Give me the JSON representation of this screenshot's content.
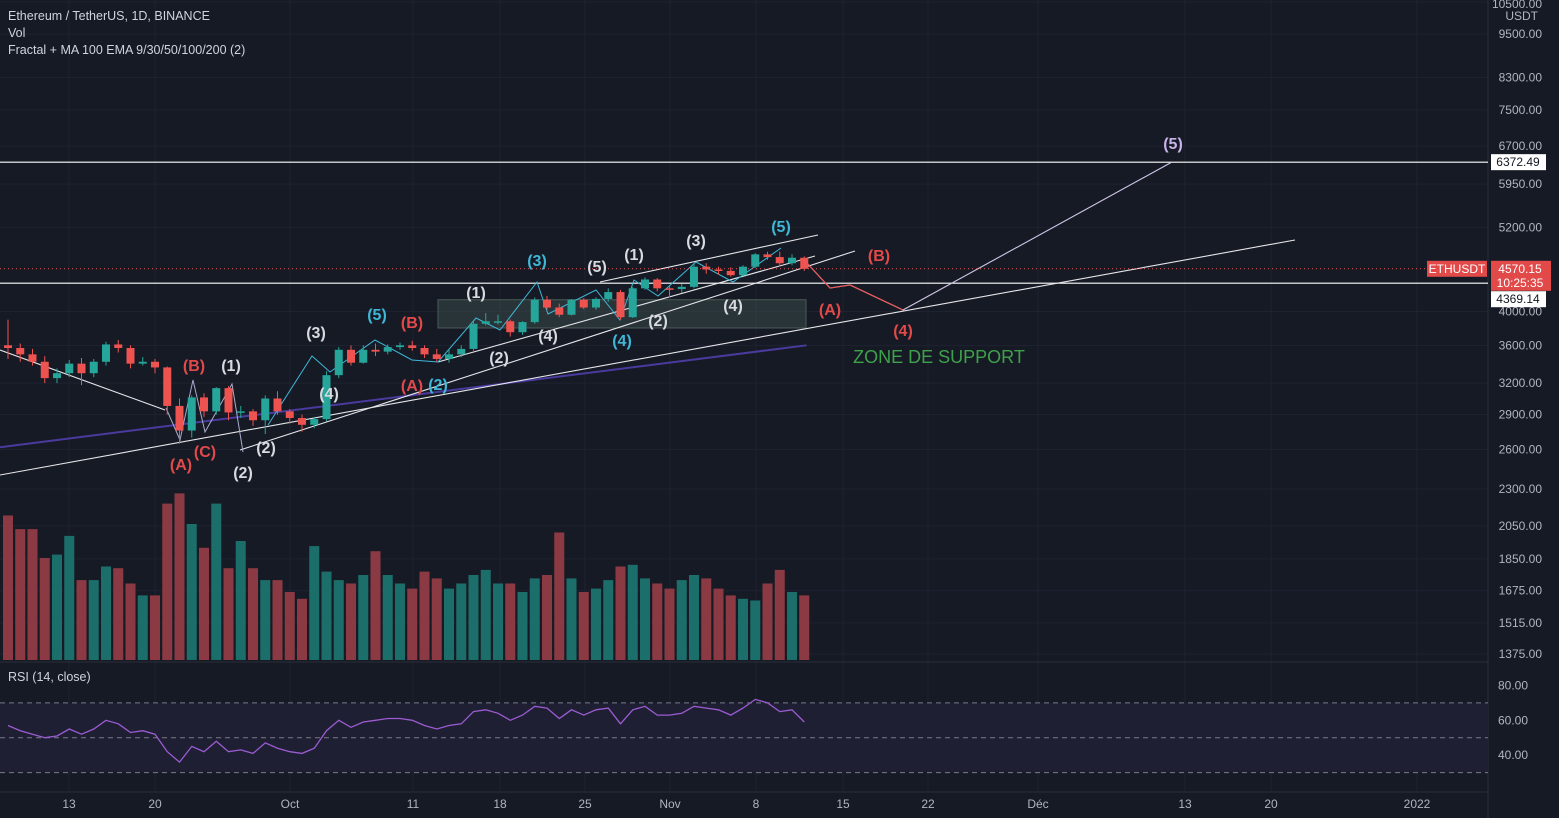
{
  "header": {
    "symbol_line": "Ethereum / TetherUS, 1D, BINANCE",
    "vol_label": "Vol",
    "indicator_label": "Fractal + MA 100 EMA 9/30/50/100/200 (2)",
    "rsi_label": "RSI (14, close)"
  },
  "colors": {
    "background": "#161a25",
    "up": "#26a69a",
    "down": "#ef5350",
    "vol_up": "#1c6e6a",
    "vol_down": "#8b3a44",
    "ema": "#4a3a9e",
    "rsi": "#9c5bd2",
    "cyan_wave": "#3fb8d8",
    "red_wave": "#e24a4a",
    "white_wave": "#d8dae0",
    "violet_wave": "#c8b4e8",
    "support": "#3ea24a"
  },
  "price_axis": {
    "currency": "USDT",
    "ticks": [
      "10500.00",
      "9500.00",
      "8300.00",
      "7500.00",
      "6700.00",
      "5950.00",
      "5200.00",
      "4000.00",
      "3600.00",
      "3200.00",
      "2900.00",
      "2600.00",
      "2300.00",
      "2050.00",
      "1850.00",
      "1675.00",
      "1515.00",
      "1375.00"
    ],
    "symbol_tag": "ETHUSDT",
    "last_price": "4570.15",
    "countdown": "10:25:35",
    "level_high": "6372.49",
    "level_low": "4369.14"
  },
  "rsi_axis": {
    "ticks": [
      "80.00",
      "60.00",
      "40.00"
    ]
  },
  "time_axis": {
    "ticks": [
      "13",
      "20",
      "Oct",
      "11",
      "18",
      "25",
      "Nov",
      "8",
      "15",
      "22",
      "Déc",
      "13",
      "20",
      "2022"
    ]
  },
  "annotations": {
    "support_zone": "ZONE DE SUPPORT"
  },
  "waves": [
    {
      "text": "(B)",
      "color": "red"
    },
    {
      "text": "(1)",
      "color": "white"
    },
    {
      "text": "(A)",
      "color": "red"
    },
    {
      "text": "(C)",
      "color": "red"
    },
    {
      "text": "(2)",
      "color": "white"
    },
    {
      "text": "(2)",
      "color": "white"
    },
    {
      "text": "(3)",
      "color": "white"
    },
    {
      "text": "(4)",
      "color": "white"
    },
    {
      "text": "(5)",
      "color": "cyan"
    },
    {
      "text": "(B)",
      "color": "red"
    },
    {
      "text": "(A)",
      "color": "red"
    },
    {
      "text": "(2)",
      "color": "cyan"
    },
    {
      "text": "(1)",
      "color": "white"
    },
    {
      "text": "(2)",
      "color": "white"
    },
    {
      "text": "(3)",
      "color": "cyan"
    },
    {
      "text": "(4)",
      "color": "white"
    },
    {
      "text": "(5)",
      "color": "white"
    },
    {
      "text": "(4)",
      "color": "cyan"
    },
    {
      "text": "(1)",
      "color": "white"
    },
    {
      "text": "(2)",
      "color": "white"
    },
    {
      "text": "(3)",
      "color": "white"
    },
    {
      "text": "(4)",
      "color": "white"
    },
    {
      "text": "(5)",
      "color": "cyan"
    },
    {
      "text": "(B)",
      "color": "red"
    },
    {
      "text": "(A)",
      "color": "red"
    },
    {
      "text": "(4)",
      "color": "red"
    },
    {
      "text": "(5)",
      "color": "violet"
    }
  ],
  "chart_data": {
    "type": "candlestick",
    "title": "Ethereum / TetherUS, 1D, BINANCE",
    "price_scale": "log",
    "ylim": [
      1375,
      10500
    ],
    "x_dates": [
      "Sep 7",
      "Sep 8",
      "Sep 9",
      "Sep 10",
      "Sep 11",
      "Sep 12",
      "Sep 13",
      "Sep 14",
      "Sep 15",
      "Sep 16",
      "Sep 17",
      "Sep 18",
      "Sep 19",
      "Sep 20",
      "Sep 21",
      "Sep 22",
      "Sep 23",
      "Sep 24",
      "Sep 25",
      "Sep 26",
      "Sep 27",
      "Sep 28",
      "Sep 29",
      "Sep 30",
      "Oct 1",
      "Oct 2",
      "Oct 3",
      "Oct 4",
      "Oct 5",
      "Oct 6",
      "Oct 7",
      "Oct 8",
      "Oct 9",
      "Oct 10",
      "Oct 11",
      "Oct 12",
      "Oct 13",
      "Oct 14",
      "Oct 15",
      "Oct 16",
      "Oct 17",
      "Oct 18",
      "Oct 19",
      "Oct 20",
      "Oct 21",
      "Oct 22",
      "Oct 23",
      "Oct 24",
      "Oct 25",
      "Oct 26",
      "Oct 27",
      "Oct 28",
      "Oct 29",
      "Oct 30",
      "Oct 31",
      "Nov 1",
      "Nov 2",
      "Nov 3",
      "Nov 4",
      "Nov 5",
      "Nov 6",
      "Nov 7",
      "Nov 8",
      "Nov 9",
      "Nov 10",
      "Nov 11"
    ],
    "candles": [
      [
        3600,
        3570,
        3900,
        3450
      ],
      [
        3570,
        3500,
        3620,
        3420
      ],
      [
        3500,
        3420,
        3560,
        3380
      ],
      [
        3420,
        3250,
        3480,
        3200
      ],
      [
        3250,
        3300,
        3350,
        3200
      ],
      [
        3300,
        3400,
        3440,
        3260
      ],
      [
        3400,
        3300,
        3460,
        3180
      ],
      [
        3300,
        3420,
        3450,
        3260
      ],
      [
        3420,
        3610,
        3640,
        3380
      ],
      [
        3610,
        3570,
        3660,
        3520
      ],
      [
        3570,
        3400,
        3600,
        3350
      ],
      [
        3400,
        3420,
        3470,
        3380
      ],
      [
        3420,
        3360,
        3450,
        3300
      ],
      [
        3360,
        2980,
        3370,
        2900
      ],
      [
        2980,
        2760,
        3050,
        2650
      ],
      [
        2760,
        3060,
        3080,
        2700
      ],
      [
        3060,
        2930,
        3100,
        2880
      ],
      [
        2930,
        3150,
        3160,
        2900
      ],
      [
        3150,
        2920,
        3170,
        2850
      ],
      [
        2920,
        2930,
        2980,
        2870
      ],
      [
        2930,
        2850,
        2950,
        2800
      ],
      [
        2850,
        3050,
        3080,
        2730
      ],
      [
        3050,
        2930,
        3120,
        2900
      ],
      [
        2930,
        2870,
        2950,
        2820
      ],
      [
        2870,
        2810,
        2900,
        2750
      ],
      [
        2810,
        2860,
        2880,
        2780
      ],
      [
        2860,
        3280,
        3320,
        2840
      ],
      [
        3280,
        3550,
        3580,
        3250
      ],
      [
        3550,
        3410,
        3600,
        3380
      ],
      [
        3410,
        3550,
        3600,
        3400
      ],
      [
        3550,
        3530,
        3620,
        3480
      ],
      [
        3530,
        3580,
        3610,
        3500
      ],
      [
        3580,
        3600,
        3630,
        3550
      ],
      [
        3600,
        3570,
        3650,
        3540
      ],
      [
        3570,
        3500,
        3600,
        3460
      ],
      [
        3500,
        3450,
        3560,
        3420
      ],
      [
        3450,
        3500,
        3560,
        3410
      ],
      [
        3500,
        3560,
        3600,
        3470
      ],
      [
        3560,
        3850,
        3880,
        3540
      ],
      [
        3850,
        3880,
        3980,
        3830
      ],
      [
        3880,
        3880,
        3960,
        3840
      ],
      [
        3880,
        3750,
        3900,
        3700
      ],
      [
        3750,
        3870,
        3880,
        3720
      ],
      [
        3870,
        4150,
        4180,
        3850
      ],
      [
        4150,
        4050,
        4200,
        4020
      ],
      [
        4050,
        3960,
        4100,
        3930
      ],
      [
        3960,
        4150,
        4160,
        3950
      ],
      [
        4150,
        4050,
        4170,
        4030
      ],
      [
        4050,
        4160,
        4180,
        4020
      ],
      [
        4160,
        4250,
        4300,
        4120
      ],
      [
        4250,
        3930,
        4280,
        3900
      ],
      [
        3930,
        4300,
        4320,
        3920
      ],
      [
        4300,
        4420,
        4450,
        4280
      ],
      [
        4420,
        4300,
        4440,
        4260
      ],
      [
        4300,
        4290,
        4330,
        4180
      ],
      [
        4290,
        4320,
        4360,
        4240
      ],
      [
        4320,
        4600,
        4650,
        4300
      ],
      [
        4600,
        4560,
        4650,
        4500
      ],
      [
        4560,
        4540,
        4600,
        4490
      ],
      [
        4540,
        4480,
        4590,
        4460
      ],
      [
        4480,
        4600,
        4620,
        4470
      ],
      [
        4600,
        4780,
        4800,
        4580
      ],
      [
        4780,
        4740,
        4820,
        4700
      ],
      [
        4740,
        4650,
        4820,
        4600
      ],
      [
        4650,
        4730,
        4780,
        4620
      ],
      [
        4730,
        4570,
        4750,
        4540
      ]
    ],
    "volume_relative": [
      0.85,
      0.77,
      0.77,
      0.6,
      0.62,
      0.73,
      0.47,
      0.47,
      0.55,
      0.54,
      0.45,
      0.38,
      0.38,
      0.92,
      0.98,
      0.8,
      0.66,
      0.92,
      0.54,
      0.7,
      0.54,
      0.47,
      0.47,
      0.4,
      0.36,
      0.67,
      0.52,
      0.47,
      0.45,
      0.5,
      0.64,
      0.5,
      0.45,
      0.42,
      0.52,
      0.48,
      0.42,
      0.45,
      0.5,
      0.53,
      0.45,
      0.45,
      0.4,
      0.48,
      0.5,
      0.75,
      0.48,
      0.4,
      0.42,
      0.47,
      0.55,
      0.56,
      0.48,
      0.45,
      0.42,
      0.47,
      0.5,
      0.48,
      0.42,
      0.38,
      0.36,
      0.35,
      0.45,
      0.53,
      0.4,
      0.38
    ],
    "rsi": [
      57,
      54,
      52,
      50,
      51,
      55,
      52,
      55,
      60,
      58,
      53,
      54,
      52,
      42,
      36,
      45,
      42,
      48,
      42,
      43,
      41,
      47,
      44,
      42,
      41,
      44,
      54,
      60,
      56,
      59,
      60,
      61,
      61,
      60,
      57,
      55,
      57,
      58,
      65,
      66,
      64,
      60,
      63,
      68,
      67,
      61,
      66,
      63,
      66,
      67,
      58,
      66,
      68,
      63,
      63,
      64,
      68,
      67,
      66,
      63,
      67,
      72,
      70,
      65,
      66,
      59
    ],
    "rsi_ylim": [
      20,
      90
    ],
    "rsi_levels": [
      70,
      50,
      30
    ],
    "ema_100": [
      {
        "x": 0,
        "y": 2620
      },
      {
        "x": 66,
        "y": 3600
      }
    ],
    "horizontal_levels": [
      6372.49,
      4369.14
    ],
    "support_zone_range": [
      3800,
      4150
    ],
    "legend": "none"
  }
}
